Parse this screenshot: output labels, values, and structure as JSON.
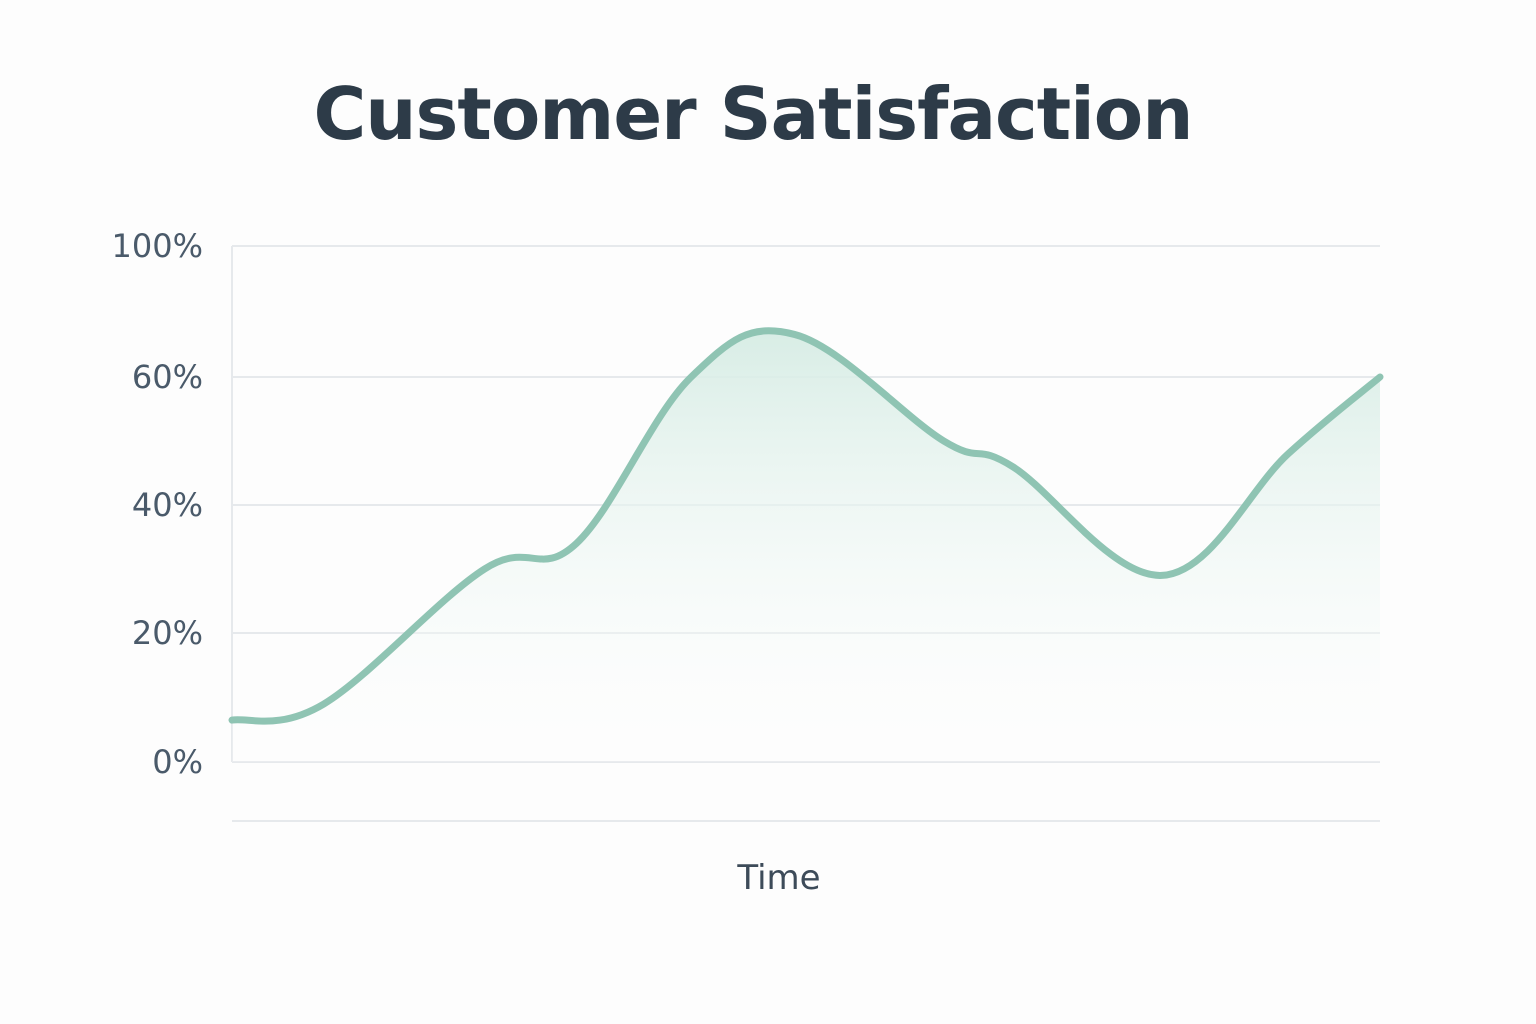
{
  "chart_data": {
    "type": "area",
    "title": "Customer Satisfaction",
    "xlabel": "Time",
    "ylabel": "",
    "y_ticks": [
      0,
      20,
      40,
      60,
      100
    ],
    "y_tick_labels": [
      "0%",
      "20%",
      "40%",
      "60%",
      "100%"
    ],
    "grid": true,
    "colors": {
      "line": "#8fc4b3",
      "fill_top": "#d6ece4",
      "fill_bottom": "#ffffff"
    },
    "series": [
      {
        "x": [
          0,
          0.08,
          0.22,
          0.3,
          0.4,
          0.49,
          0.62,
          0.68,
          0.81,
          0.92,
          1.0
        ],
        "values": [
          6.5,
          9,
          30,
          34,
          60,
          73,
          50,
          46,
          29,
          48,
          60
        ]
      }
    ]
  }
}
